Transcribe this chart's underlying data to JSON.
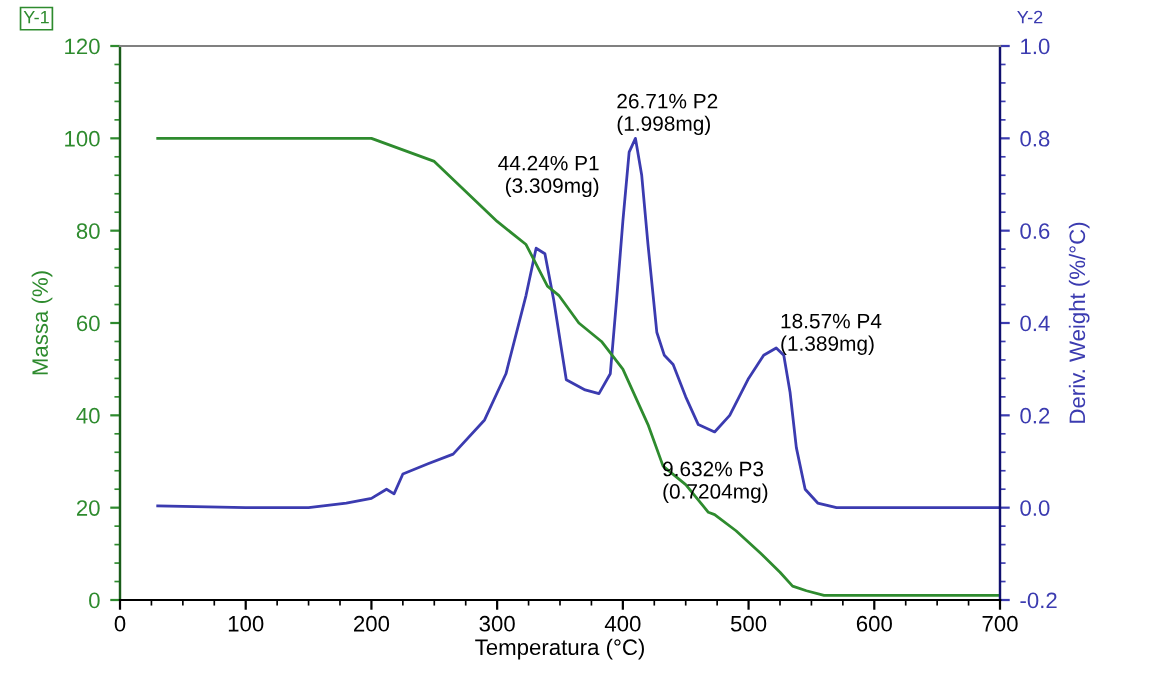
{
  "chart_data": {
    "type": "line",
    "xlabel": "Temperatura (°C)",
    "ylabel": "Massa (%)",
    "y2label": "Deriv. Weight (%/°C)",
    "xlim": [
      0,
      700
    ],
    "xticks": [
      0,
      100,
      200,
      300,
      400,
      500,
      600,
      700
    ],
    "ylim": [
      0,
      120
    ],
    "yticks": [
      0,
      20,
      40,
      60,
      80,
      100,
      120
    ],
    "y2lim": [
      -0.2,
      1.0
    ],
    "y2ticks": [
      {
        "value": -0.2,
        "label": "-0.2"
      },
      {
        "value": 0.0,
        "label": "0.0"
      },
      {
        "value": 0.2,
        "label": "0.2"
      },
      {
        "value": 0.4,
        "label": "0.4"
      },
      {
        "value": 0.6,
        "label": "0.6"
      },
      {
        "value": 0.8,
        "label": "0.8"
      },
      {
        "value": 1.0,
        "label": "1.0"
      }
    ],
    "series": [
      {
        "color": "#2e8b2e",
        "x": [
          30,
          100,
          150,
          200,
          250,
          300,
          323,
          340,
          349,
          365,
          383,
          400,
          420,
          432,
          450,
          468,
          473,
          490,
          510,
          525,
          535,
          546,
          560,
          600,
          650,
          700
        ],
        "values": [
          100,
          100,
          100,
          100,
          95,
          82,
          77,
          68,
          66,
          60,
          56,
          50,
          38,
          29,
          25,
          19,
          18.5,
          15,
          10,
          6,
          3,
          2,
          1,
          1,
          1,
          1
        ]
      },
      {
        "color": "#3b3bb0",
        "axis": "y2",
        "x": [
          30,
          100,
          150,
          180,
          200,
          212,
          218,
          225,
          245,
          265,
          290,
          307,
          323,
          331,
          338,
          345,
          355,
          370,
          381,
          390,
          395,
          400,
          405,
          410,
          415,
          420,
          427,
          433,
          440,
          450,
          460,
          473,
          485,
          500,
          512,
          522,
          528,
          533,
          538,
          545,
          555,
          570,
          600,
          650,
          700
        ],
        "values": [
          0.004,
          0.0,
          0.0,
          0.01,
          0.02,
          0.04,
          0.03,
          0.073,
          0.095,
          0.116,
          0.19,
          0.29,
          0.46,
          0.562,
          0.55,
          0.45,
          0.277,
          0.255,
          0.247,
          0.29,
          0.45,
          0.62,
          0.77,
          0.8,
          0.72,
          0.57,
          0.38,
          0.33,
          0.31,
          0.24,
          0.18,
          0.164,
          0.2,
          0.28,
          0.33,
          0.346,
          0.33,
          0.25,
          0.13,
          0.04,
          0.01,
          0.0,
          0.0,
          0.0,
          0.0
        ]
      }
    ],
    "annotations": [
      "44.24% P1\n(3.309mg)",
      "26.71% P2\n(1.998mg)",
      "9.632% P3\n(0.7204mg)",
      "18.57% P4\n(1.389mg)",
      "Y-1",
      "Y-2"
    ],
    "grid": false,
    "legend": false
  }
}
